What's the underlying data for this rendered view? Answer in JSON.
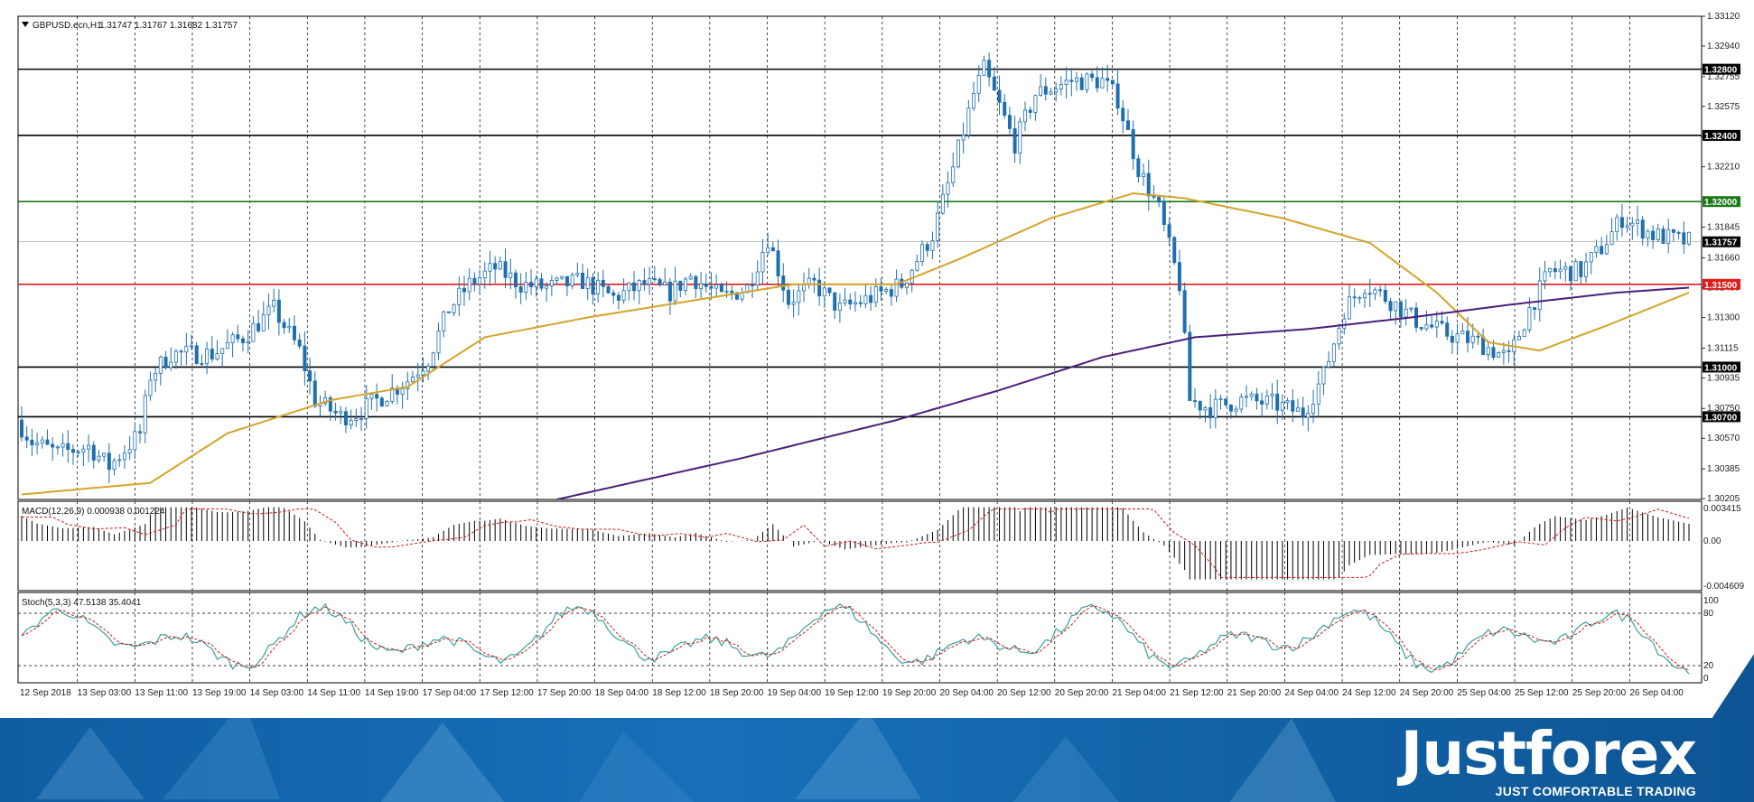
{
  "window": {
    "symbol_title": "GBPUSD.ecn,H1",
    "ohlc": "1.31747 1.31767 1.31682 1.31757"
  },
  "macd": {
    "label": "MACD(12,26,9) 0.000938 0.001224",
    "ticks": [
      "0.003415",
      "0.00",
      "-0.004609"
    ]
  },
  "stoch": {
    "label": "Stoch(5,3,3) 47.5138 35.4041",
    "ticks": [
      "100",
      "80",
      "20",
      "0"
    ]
  },
  "brand": {
    "name": "Justforex",
    "tagline": "JUST COMFORTABLE TRADING"
  },
  "colors": {
    "bull": "#ffffff",
    "bear": "#1f6fb0",
    "candle_outline": "#1f6fb0",
    "ma_fast": "#d4a42a",
    "ma_slow": "#4b1f7a",
    "level_black": "#000000",
    "level_red": "#e01b1b",
    "level_green": "#1a7a1a",
    "macd_signal": "#d11a1a",
    "stoch_main": "#3aa0a0",
    "stoch_signal": "#d11a1a",
    "banner": "#1770b8"
  },
  "chart_data": {
    "type": "candlestick",
    "title": "GBPUSD.ecn,H1",
    "ylim": [
      1.302,
      1.3312
    ],
    "y_ticks": [
      "1.33120",
      "1.32940",
      "1.32755",
      "1.32575",
      "1.32390",
      "1.32210",
      "1.31845",
      "1.31660",
      "1.31480",
      "1.31300",
      "1.31115",
      "1.30935",
      "1.30750",
      "1.30570",
      "1.30385",
      "1.30205"
    ],
    "x_tick_labels": [
      "12 Sep 2018",
      "13 Sep 03:00",
      "13 Sep 11:00",
      "13 Sep 19:00",
      "14 Sep 03:00",
      "14 Sep 11:00",
      "14 Sep 19:00",
      "17 Sep 04:00",
      "17 Sep 12:00",
      "17 Sep 20:00",
      "18 Sep 04:00",
      "18 Sep 12:00",
      "18 Sep 20:00",
      "19 Sep 04:00",
      "19 Sep 12:00",
      "19 Sep 20:00",
      "20 Sep 04:00",
      "20 Sep 12:00",
      "20 Sep 20:00",
      "21 Sep 04:00",
      "21 Sep 12:00",
      "21 Sep 20:00",
      "24 Sep 04:00",
      "24 Sep 12:00",
      "24 Sep 20:00",
      "25 Sep 04:00",
      "25 Sep 12:00",
      "25 Sep 20:00",
      "26 Sep 04:00"
    ],
    "horizontal_levels": [
      {
        "label": "1.32800",
        "value": 1.328,
        "color": "black"
      },
      {
        "label": "1.32400",
        "value": 1.324,
        "color": "black"
      },
      {
        "label": "1.32000",
        "value": 1.32,
        "color": "green"
      },
      {
        "label": "1.31500",
        "value": 1.315,
        "color": "red"
      },
      {
        "label": "1.31000",
        "value": 1.31,
        "color": "black"
      },
      {
        "label": "1.30700",
        "value": 1.307,
        "color": "black"
      }
    ],
    "current_price_label": "1.31757",
    "current_price": 1.31757,
    "price_waypoints": [
      [
        0,
        1.3068
      ],
      [
        3,
        1.3055
      ],
      [
        8,
        1.3048
      ],
      [
        14,
        1.3052
      ],
      [
        18,
        1.304
      ],
      [
        24,
        1.306
      ],
      [
        26,
        1.3095
      ],
      [
        30,
        1.3108
      ],
      [
        38,
        1.3108
      ],
      [
        44,
        1.3118
      ],
      [
        50,
        1.3135
      ],
      [
        55,
        1.311
      ],
      [
        58,
        1.308
      ],
      [
        63,
        1.307
      ],
      [
        66,
        1.3072
      ],
      [
        70,
        1.308
      ],
      [
        76,
        1.3092
      ],
      [
        80,
        1.3105
      ],
      [
        84,
        1.3135
      ],
      [
        88,
        1.315
      ],
      [
        93,
        1.316
      ],
      [
        98,
        1.315
      ],
      [
        103,
        1.3148
      ],
      [
        110,
        1.3152
      ],
      [
        116,
        1.3142
      ],
      [
        122,
        1.315
      ],
      [
        127,
        1.3145
      ],
      [
        131,
        1.3155
      ],
      [
        137,
        1.3142
      ],
      [
        142,
        1.3148
      ],
      [
        146,
        1.3178
      ],
      [
        150,
        1.314
      ],
      [
        155,
        1.315
      ],
      [
        160,
        1.3135
      ],
      [
        166,
        1.3142
      ],
      [
        172,
        1.315
      ],
      [
        178,
        1.318
      ],
      [
        182,
        1.322
      ],
      [
        186,
        1.3265
      ],
      [
        188,
        1.328
      ],
      [
        194,
        1.3235
      ],
      [
        198,
        1.3265
      ],
      [
        205,
        1.3273
      ],
      [
        211,
        1.3273
      ],
      [
        214,
        1.3262
      ],
      [
        218,
        1.322
      ],
      [
        222,
        1.3195
      ],
      [
        226,
        1.315
      ],
      [
        228,
        1.308
      ],
      [
        232,
        1.3075
      ],
      [
        238,
        1.308
      ],
      [
        244,
        1.3078
      ],
      [
        250,
        1.3072
      ],
      [
        254,
        1.3095
      ],
      [
        258,
        1.3135
      ],
      [
        262,
        1.315
      ],
      [
        267,
        1.314
      ],
      [
        272,
        1.3128
      ],
      [
        278,
        1.312
      ],
      [
        284,
        1.3115
      ],
      [
        290,
        1.3105
      ],
      [
        294,
        1.3135
      ],
      [
        298,
        1.3158
      ],
      [
        304,
        1.3158
      ],
      [
        308,
        1.3172
      ],
      [
        312,
        1.319
      ],
      [
        318,
        1.318
      ],
      [
        324,
        1.3176
      ]
    ],
    "ma_fast_waypoints": [
      [
        0,
        1.3023
      ],
      [
        25,
        1.303
      ],
      [
        40,
        1.306
      ],
      [
        60,
        1.308
      ],
      [
        75,
        1.3088
      ],
      [
        90,
        1.3118
      ],
      [
        110,
        1.313
      ],
      [
        130,
        1.314
      ],
      [
        150,
        1.315
      ],
      [
        170,
        1.315
      ],
      [
        182,
        1.3165
      ],
      [
        200,
        1.319
      ],
      [
        216,
        1.3205
      ],
      [
        226,
        1.3202
      ],
      [
        245,
        1.319
      ],
      [
        262,
        1.3175
      ],
      [
        275,
        1.3145
      ],
      [
        285,
        1.3115
      ],
      [
        295,
        1.311
      ],
      [
        308,
        1.3125
      ],
      [
        324,
        1.3145
      ]
    ],
    "ma_slow_waypoints": [
      [
        104,
        1.302
      ],
      [
        140,
        1.3045
      ],
      [
        170,
        1.3068
      ],
      [
        190,
        1.3086
      ],
      [
        210,
        1.3106
      ],
      [
        228,
        1.3118
      ],
      [
        250,
        1.3123
      ],
      [
        270,
        1.313
      ],
      [
        290,
        1.3138
      ],
      [
        310,
        1.3145
      ],
      [
        324,
        1.3148
      ]
    ]
  }
}
